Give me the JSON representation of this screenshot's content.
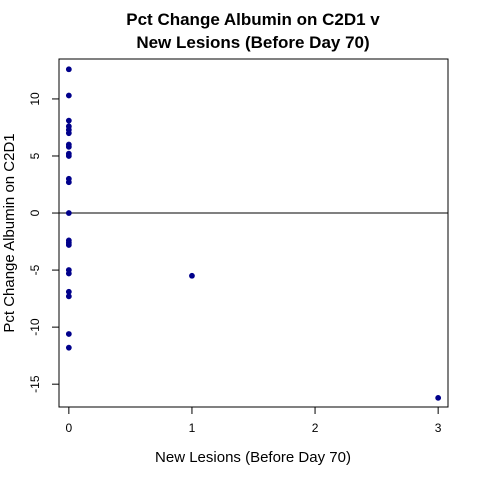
{
  "chart_data": {
    "type": "scatter",
    "title": [
      "Pct Change Albumin on C2D1 v",
      "New Lesions (Before Day 70)"
    ],
    "xlabel": "New Lesions (Before Day 70)",
    "ylabel": "Pct Change Albumin on C2D1",
    "xlim": [
      -0.08,
      3.08
    ],
    "ylim": [
      -17.0,
      13.5
    ],
    "xticks": [
      0,
      1,
      2,
      3
    ],
    "yticks": [
      -15,
      -10,
      -5,
      0,
      5,
      10
    ],
    "reference_line_y": 0,
    "point_color": "#00008B",
    "points": [
      {
        "x": 0,
        "y": 12.6
      },
      {
        "x": 0,
        "y": 10.3
      },
      {
        "x": 0,
        "y": 8.1
      },
      {
        "x": 0,
        "y": 7.6
      },
      {
        "x": 0,
        "y": 7.3
      },
      {
        "x": 0,
        "y": 7.0
      },
      {
        "x": 0,
        "y": 6.0
      },
      {
        "x": 0,
        "y": 5.8
      },
      {
        "x": 0,
        "y": 5.2
      },
      {
        "x": 0,
        "y": 5.0
      },
      {
        "x": 0,
        "y": 3.0
      },
      {
        "x": 0,
        "y": 2.7
      },
      {
        "x": 0,
        "y": 0.0
      },
      {
        "x": 0,
        "y": -2.4
      },
      {
        "x": 0,
        "y": -2.6
      },
      {
        "x": 0,
        "y": -2.8
      },
      {
        "x": 0,
        "y": -5.0
      },
      {
        "x": 0,
        "y": -5.3
      },
      {
        "x": 0,
        "y": -6.9
      },
      {
        "x": 0,
        "y": -7.3
      },
      {
        "x": 0,
        "y": -10.6
      },
      {
        "x": 0,
        "y": -11.8
      },
      {
        "x": 1,
        "y": -5.5
      },
      {
        "x": 3,
        "y": -16.2
      }
    ]
  }
}
